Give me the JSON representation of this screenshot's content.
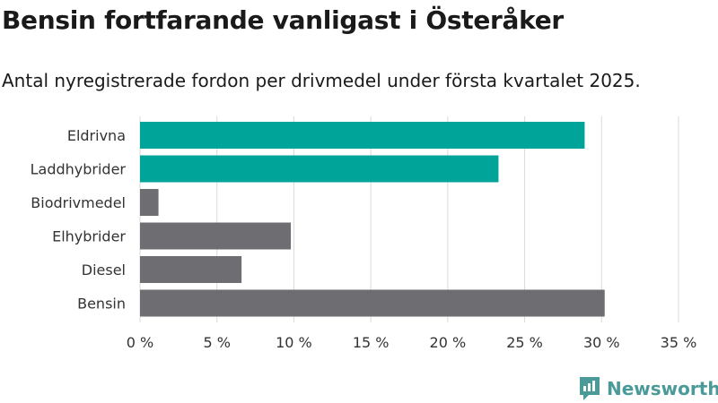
{
  "title": "Bensin fortfarande vanligast i Österåker",
  "subtitle": "Antal nyregistrerade fordon per drivmedel under första kvartalet 2025.",
  "brand": {
    "name": "Newsworthy"
  },
  "colors": {
    "highlight": "#00a499",
    "neutral": "#6d6d72",
    "grid": "#d9d9d9",
    "text": "#333333"
  },
  "chart_data": {
    "type": "bar",
    "orientation": "horizontal",
    "categories": [
      "Eldrivna",
      "Laddhybrider",
      "Biodrivmedel",
      "Elhybrider",
      "Diesel",
      "Bensin"
    ],
    "values": [
      28.9,
      23.3,
      1.2,
      9.8,
      6.6,
      30.2
    ],
    "highlighted": [
      true,
      true,
      false,
      false,
      false,
      false
    ],
    "xlim": [
      0,
      35
    ],
    "xticks": [
      0,
      5,
      10,
      15,
      20,
      25,
      30,
      35
    ],
    "xtick_labels": [
      "0 %",
      "5 %",
      "10 %",
      "15 %",
      "20 %",
      "25 %",
      "30 %",
      "35 %"
    ],
    "grid": true
  }
}
